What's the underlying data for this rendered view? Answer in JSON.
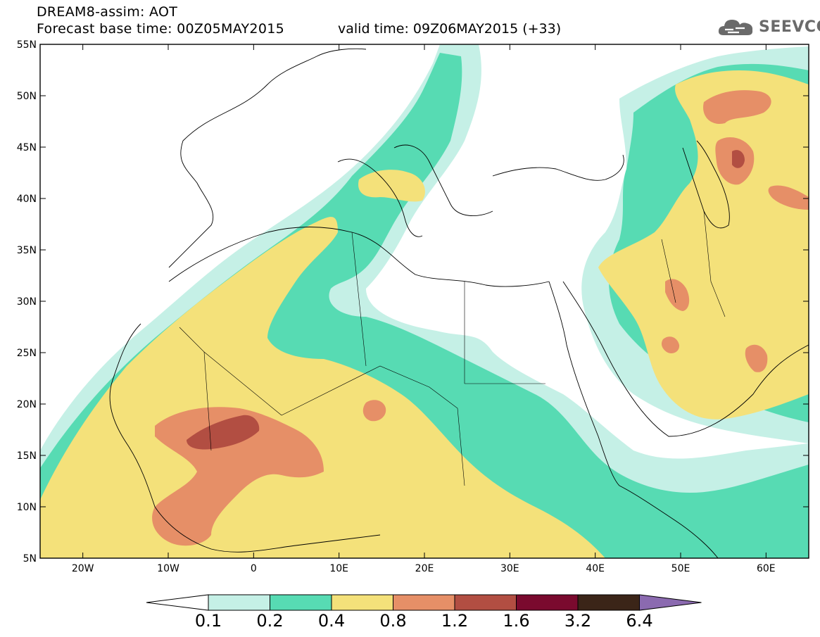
{
  "header": {
    "title_line1": "DREAM8-assim: AOT",
    "title_line2": "Forecast base time: 00Z05MAY2015",
    "valid_time": "valid time: 09Z06MAY2015 (+33)",
    "logo_text": "SEEVCCC"
  },
  "map": {
    "lon_labels": [
      "20W",
      "10W",
      "0",
      "10E",
      "20E",
      "30E",
      "40E",
      "50E",
      "60E"
    ],
    "lat_labels": [
      "55N",
      "50N",
      "45N",
      "40N",
      "35N",
      "30N",
      "25N",
      "20N",
      "15N",
      "10N",
      "5N"
    ],
    "lon_range": [
      -25,
      65
    ],
    "lat_range": [
      5,
      55
    ]
  },
  "legend": {
    "labels": [
      "0.1",
      "0.2",
      "0.4",
      "0.8",
      "1.2",
      "1.6",
      "3.2",
      "6.4"
    ],
    "colors": [
      "#c5f0e6",
      "#57dbb3",
      "#f4e17a",
      "#e68f67",
      "#b24e42",
      "#7a0a2e",
      "#3b2518",
      "#8b6ab0"
    ]
  },
  "colors": {
    "c01": "#c5f0e6",
    "c02": "#57dbb3",
    "c04": "#f4e17a",
    "c08": "#e68f67",
    "c12": "#b24e42"
  }
}
